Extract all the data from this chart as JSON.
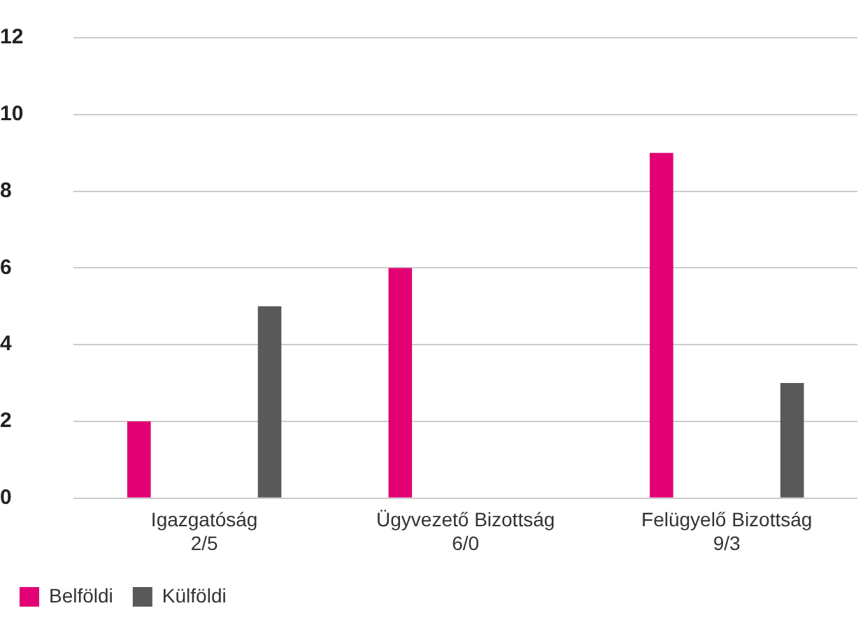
{
  "chart_data": {
    "type": "bar",
    "categories": [
      "Igazgatóság\n2/5",
      "Ügyvezető Bizottság\n6/0",
      "Felügyelő Bizottság\n9/3"
    ],
    "series": [
      {
        "name": "Belföldi",
        "color": "#e20074",
        "values": [
          2,
          6,
          9
        ]
      },
      {
        "name": "Külföldi",
        "color": "#595959",
        "values": [
          5,
          0,
          3
        ]
      }
    ],
    "ylim": [
      0,
      12
    ],
    "yticks": [
      0,
      2,
      4,
      6,
      8,
      10,
      12
    ],
    "grid": "y",
    "legend": "bottom left"
  }
}
